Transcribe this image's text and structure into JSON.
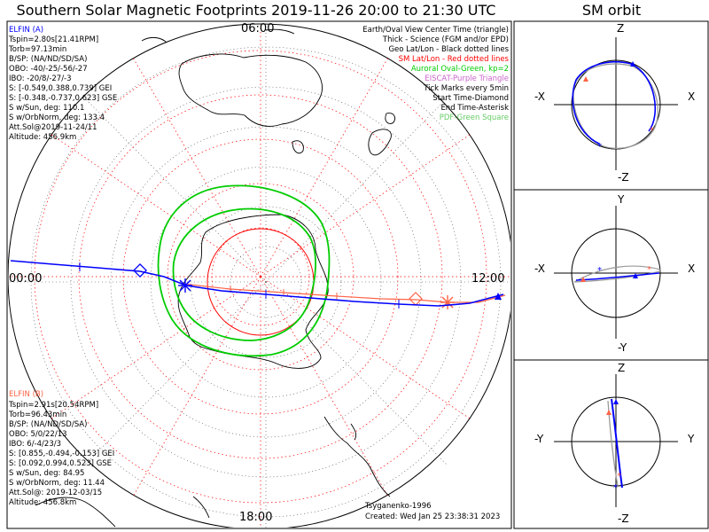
{
  "header": {
    "title": "Southern Solar Magnetic Footprints 2019-11-26 20:00 to 21:30 UTC",
    "orbit_title": "SM orbit"
  },
  "clock_labels": {
    "top": "06:00",
    "left": "00:00",
    "right": "12:00",
    "bottom": "18:00"
  },
  "elfin_a": {
    "name": "ELFIN (A)",
    "color": "#0000ff",
    "lines": [
      "Tspin=2.80s[21.41RPM]",
      "Torb=97.13min",
      "B/SP: (NA/ND/SD/SA)",
      "OBO: -40/-25/-56/-27",
      "IBO: -20/8/-27/-3",
      "S: [-0.549,0.388,0.739] GEI",
      "S: [-0.348,-0.737,0.623] GSE",
      "S w/Sun, deg: 110.1",
      "S w/OrbNorm, deg: 133.4",
      "Att.Sol@2019-11-24/11",
      "Altitude: 456.9km"
    ]
  },
  "elfin_b": {
    "name": "ELFIN (B)",
    "color": "#ff6347",
    "lines": [
      "Tspin=2.91s[20.54RPM]",
      "Torb=96.43min",
      "B/SP: (NA/ND/SD/SA)",
      "OBO: 5/0/22/13",
      "IBO: 6/-4/23/3",
      "S: [0.855,-0.494,-0.153] GEI",
      "S: [0.092,0.994,0.523] GSE",
      "S w/Sun, deg: 84.95",
      "S w/OrbNorm, deg: 11.44",
      "Att.Sol@: 2019-12-03/15",
      "Altitude: 456.8km"
    ]
  },
  "legend": [
    {
      "text": "Earth/Oval View Center Time (triangle)",
      "color": "#000000"
    },
    {
      "text": "Thick - Science (FGM and/or EPD)",
      "color": "#000000"
    },
    {
      "text": "Geo Lat/Lon - Black dotted lines",
      "color": "#000000"
    },
    {
      "text": "SM Lat/Lon - Red dotted lines",
      "color": "#ff0000"
    },
    {
      "text": "Auroral Oval-Green, kp=2",
      "color": "#00cc00"
    },
    {
      "text": "EISCAT-Purple Triangle",
      "color": "#cc66cc"
    },
    {
      "text": "Tick Marks every 5min",
      "color": "#000000"
    },
    {
      "text": "Start Time-Diamond",
      "color": "#000000"
    },
    {
      "text": "End Time-Asterisk",
      "color": "#000000"
    },
    {
      "text": "PDF-Green Square",
      "color": "#66cc66"
    }
  ],
  "footer": {
    "credit": "Tsyganenko-1996",
    "created": "Created: Wed Jan 25 23:38:31 2023"
  },
  "orbit_panels": [
    {
      "top": "Z",
      "bottom": "-Z",
      "left": "-X",
      "right": "X"
    },
    {
      "top": "Y",
      "bottom": "-Y",
      "left": "-X",
      "right": "X"
    },
    {
      "top": "Z",
      "bottom": "-Z",
      "left": "-Y",
      "right": "Y"
    }
  ],
  "colors": {
    "elfin_a": "#0000ff",
    "elfin_b": "#ff6347",
    "sm_grid": "#ff0000",
    "auroral_oval": "#00cc00",
    "coastline": "#000000"
  }
}
